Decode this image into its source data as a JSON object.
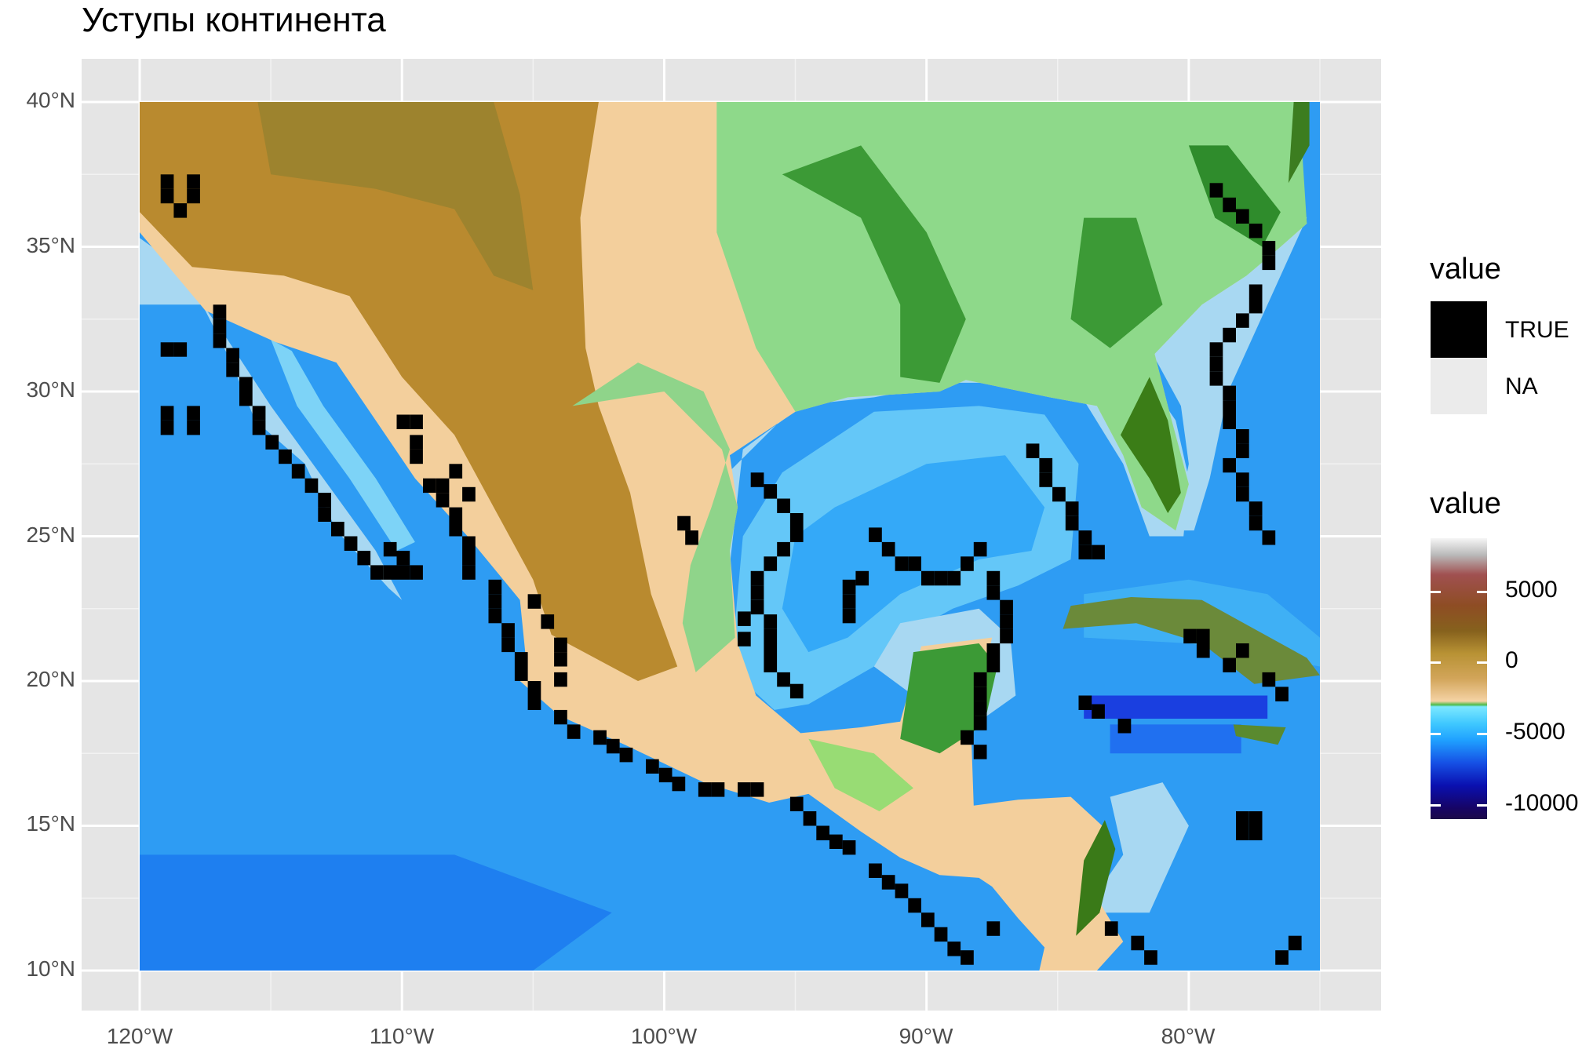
{
  "title": "Уступы континента",
  "axes": {
    "y_ticks": [
      "10°N",
      "15°N",
      "20°N",
      "25°N",
      "30°N",
      "35°N",
      "40°N"
    ],
    "x_ticks": [
      "120°W",
      "110°W",
      "100°W",
      "90°W",
      "80°W"
    ]
  },
  "map": {
    "lon_range": [
      -120,
      -75
    ],
    "lat_range": [
      10,
      40
    ],
    "grid": true,
    "region": "Mexico, Central America, Gulf of Mexico, southern United States",
    "ocean_color": "#2e9cf3",
    "shelf_color": "#a8d8f2",
    "land_low_color": "#f3cf9c",
    "land_high_color": "#b98a2f",
    "vegetation_color": "#3c9a36",
    "escarpment_color": "#000000"
  },
  "legend": {
    "discrete": {
      "title": "value",
      "items": [
        {
          "label": "TRUE",
          "color": "#000000"
        },
        {
          "label": "NA",
          "color": "#ebebeb"
        }
      ]
    },
    "continuous": {
      "title": "value",
      "labels": [
        "5000",
        "0",
        "-5000",
        "-10000"
      ],
      "range": [
        -11000,
        8500
      ]
    }
  }
}
